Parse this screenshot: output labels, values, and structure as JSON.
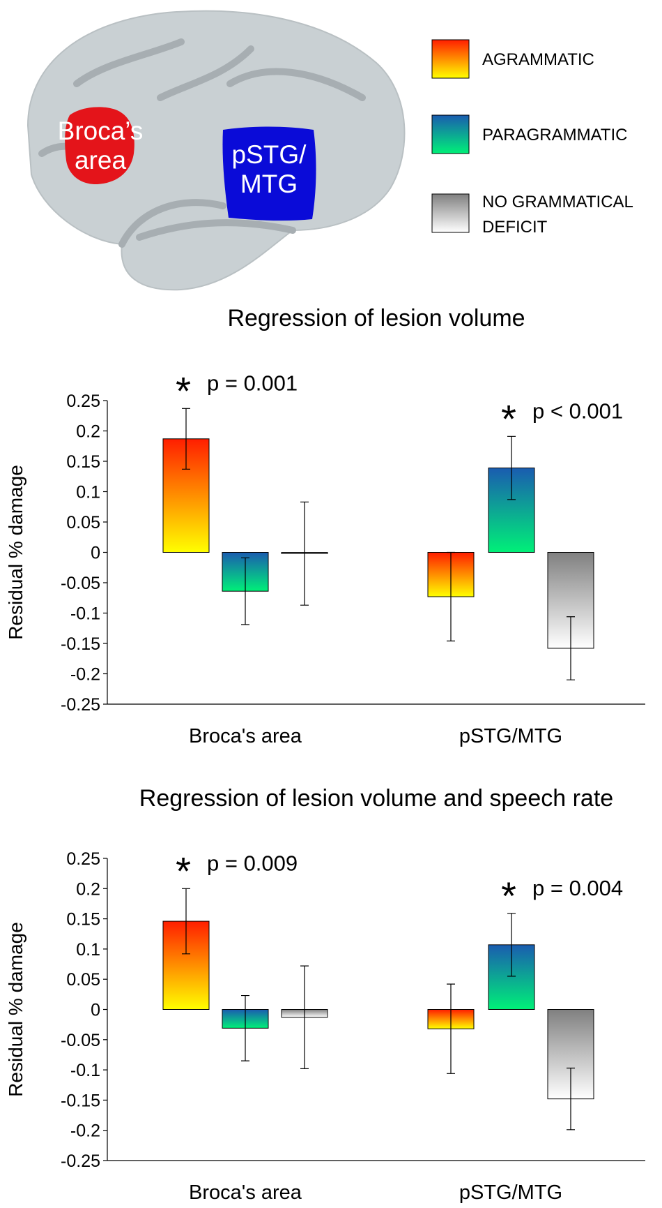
{
  "brain": {
    "region_labels": [
      [
        "Broca’s",
        "area"
      ],
      [
        "pSTG/",
        "MTG"
      ]
    ]
  },
  "legend": [
    {
      "name": [
        "AGRAMMATIC"
      ],
      "color": [
        "#ff1e00",
        "#ffff00"
      ]
    },
    {
      "name": [
        "PARAGRAMMATIC"
      ],
      "color": [
        "#1a5cb0",
        "#00f078"
      ]
    },
    {
      "name": [
        "NO GRAMMATICAL",
        "DEFICIT"
      ],
      "color": [
        "#808080",
        "#ffffff"
      ]
    }
  ],
  "chart_data": [
    {
      "type": "bar",
      "title": "Regression of lesion volume",
      "y_label": "Residual % damage",
      "categories": [
        "Broca's area",
        "pSTG/MTG"
      ],
      "series": [
        {
          "values": [
            0.187,
            -0.073
          ],
          "errors": [
            0.05,
            0.073
          ]
        },
        {
          "values": [
            -0.064,
            0.139
          ],
          "errors": [
            0.055,
            0.052
          ]
        },
        {
          "values": [
            -0.002,
            -0.158
          ],
          "errors": [
            0.085,
            0.052
          ]
        }
      ],
      "annotations": [
        {
          "marker": "*",
          "text": "p = 0.001"
        },
        {
          "marker": "*",
          "text": "p < 0.001"
        }
      ],
      "ylim": [
        -0.25,
        0.25
      ],
      "yticks": [
        0.25,
        0.2,
        0.15,
        0.1,
        0.05,
        0,
        -0.05,
        -0.1,
        -0.15,
        -0.2,
        -0.25
      ]
    },
    {
      "type": "bar",
      "title": "Regression of lesion volume and speech rate",
      "y_label": "Residual % damage",
      "categories": [
        "Broca's area",
        "pSTG/MTG"
      ],
      "series": [
        {
          "values": [
            0.146,
            -0.032
          ],
          "errors": [
            0.054,
            0.074
          ]
        },
        {
          "values": [
            -0.031,
            0.107
          ],
          "errors": [
            0.054,
            0.052
          ]
        },
        {
          "values": [
            -0.013,
            -0.148
          ],
          "errors": [
            0.085,
            0.051
          ]
        }
      ],
      "annotations": [
        {
          "marker": "*",
          "text": "p = 0.009"
        },
        {
          "marker": "*",
          "text": "p = 0.004"
        }
      ],
      "ylim": [
        -0.25,
        0.25
      ],
      "yticks": [
        0.25,
        0.2,
        0.15,
        0.1,
        0.05,
        0,
        -0.05,
        -0.1,
        -0.15,
        -0.2,
        -0.25
      ]
    }
  ]
}
